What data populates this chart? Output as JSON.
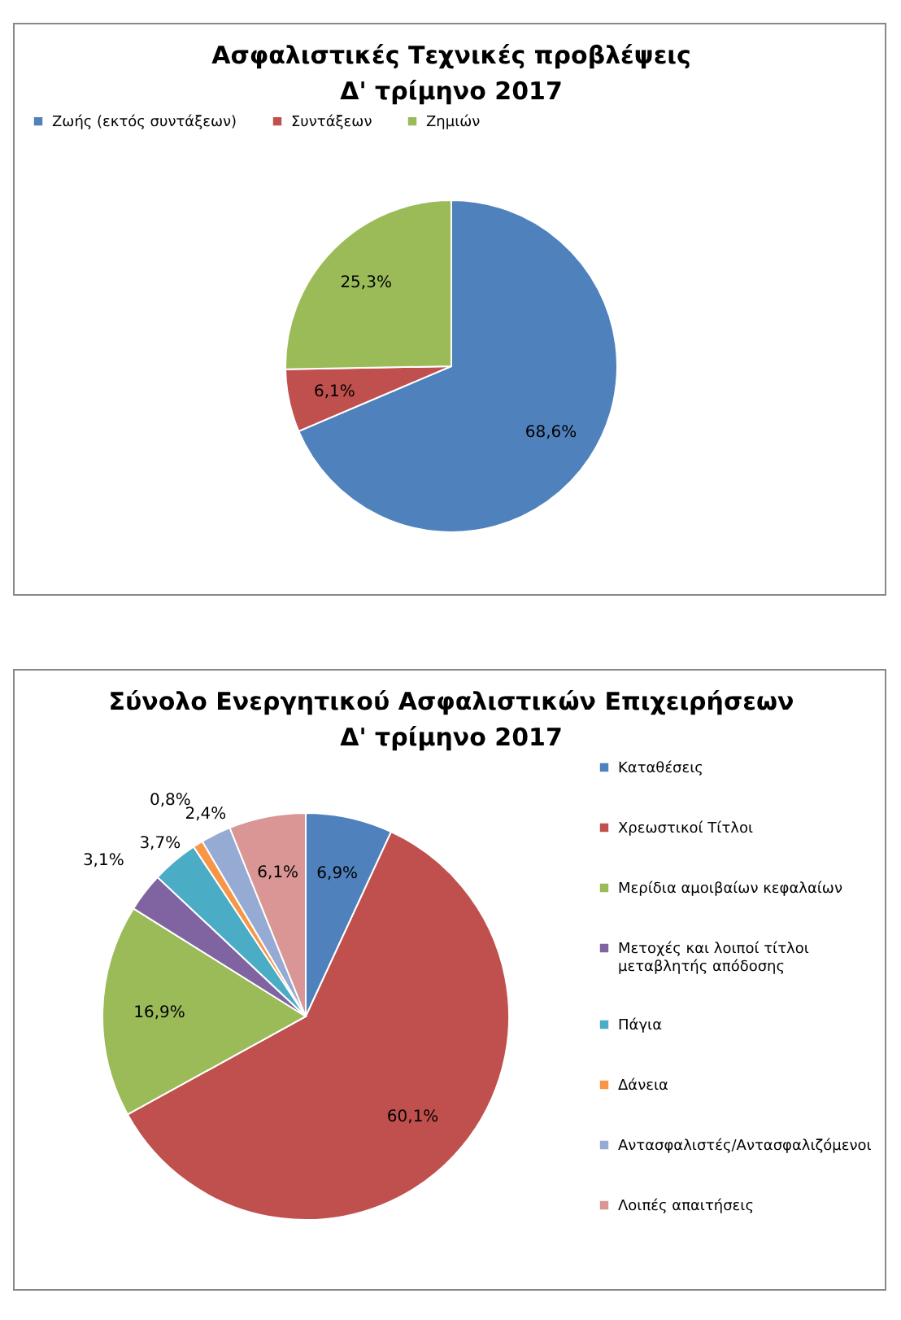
{
  "chart_data": [
    {
      "type": "pie",
      "title": "Ασφαλιστικές Τεχνικές προβλέψεις\nΔ' τρίμηνο 2017",
      "categories": [
        "Ζωής (εκτός συντάξεων)",
        "Συντάξεων",
        "Ζημιών"
      ],
      "values": [
        68.6,
        6.1,
        25.3
      ],
      "colors": [
        "#4f81bd",
        "#c0504d",
        "#9bbb59"
      ],
      "value_labels": [
        "68,6%",
        "6,1%",
        "25,3%"
      ],
      "legend": "top"
    },
    {
      "type": "pie",
      "title": "Σύνολο Ενεργητικού Ασφαλιστικών Επιχειρήσεων\nΔ' τρίμηνο 2017",
      "categories": [
        "Καταθέσεις",
        "Χρεωστικοί Τίτλοι",
        "Μερίδια αμοιβαίων κεφαλαίων",
        "Μετοχές και λοιποί τίτλοι μεταβλητής απόδοσης",
        "Πάγια",
        "Δάνεια",
        "Αντασφαλιστές/Αντασφαλιζόμενοι",
        "Λοιπές απαιτήσεις"
      ],
      "values": [
        6.9,
        60.1,
        16.9,
        3.1,
        3.7,
        0.8,
        2.4,
        6.1
      ],
      "colors": [
        "#4f81bd",
        "#c0504d",
        "#9bbb59",
        "#8064a2",
        "#4bacc6",
        "#f79646",
        "#95abd3",
        "#d99694"
      ],
      "value_labels": [
        "6,9%",
        "60,1%",
        "16,9%",
        "3,1%",
        "3,7%",
        "0,8%",
        "2,4%",
        "6,1%"
      ],
      "legend": "right"
    }
  ]
}
